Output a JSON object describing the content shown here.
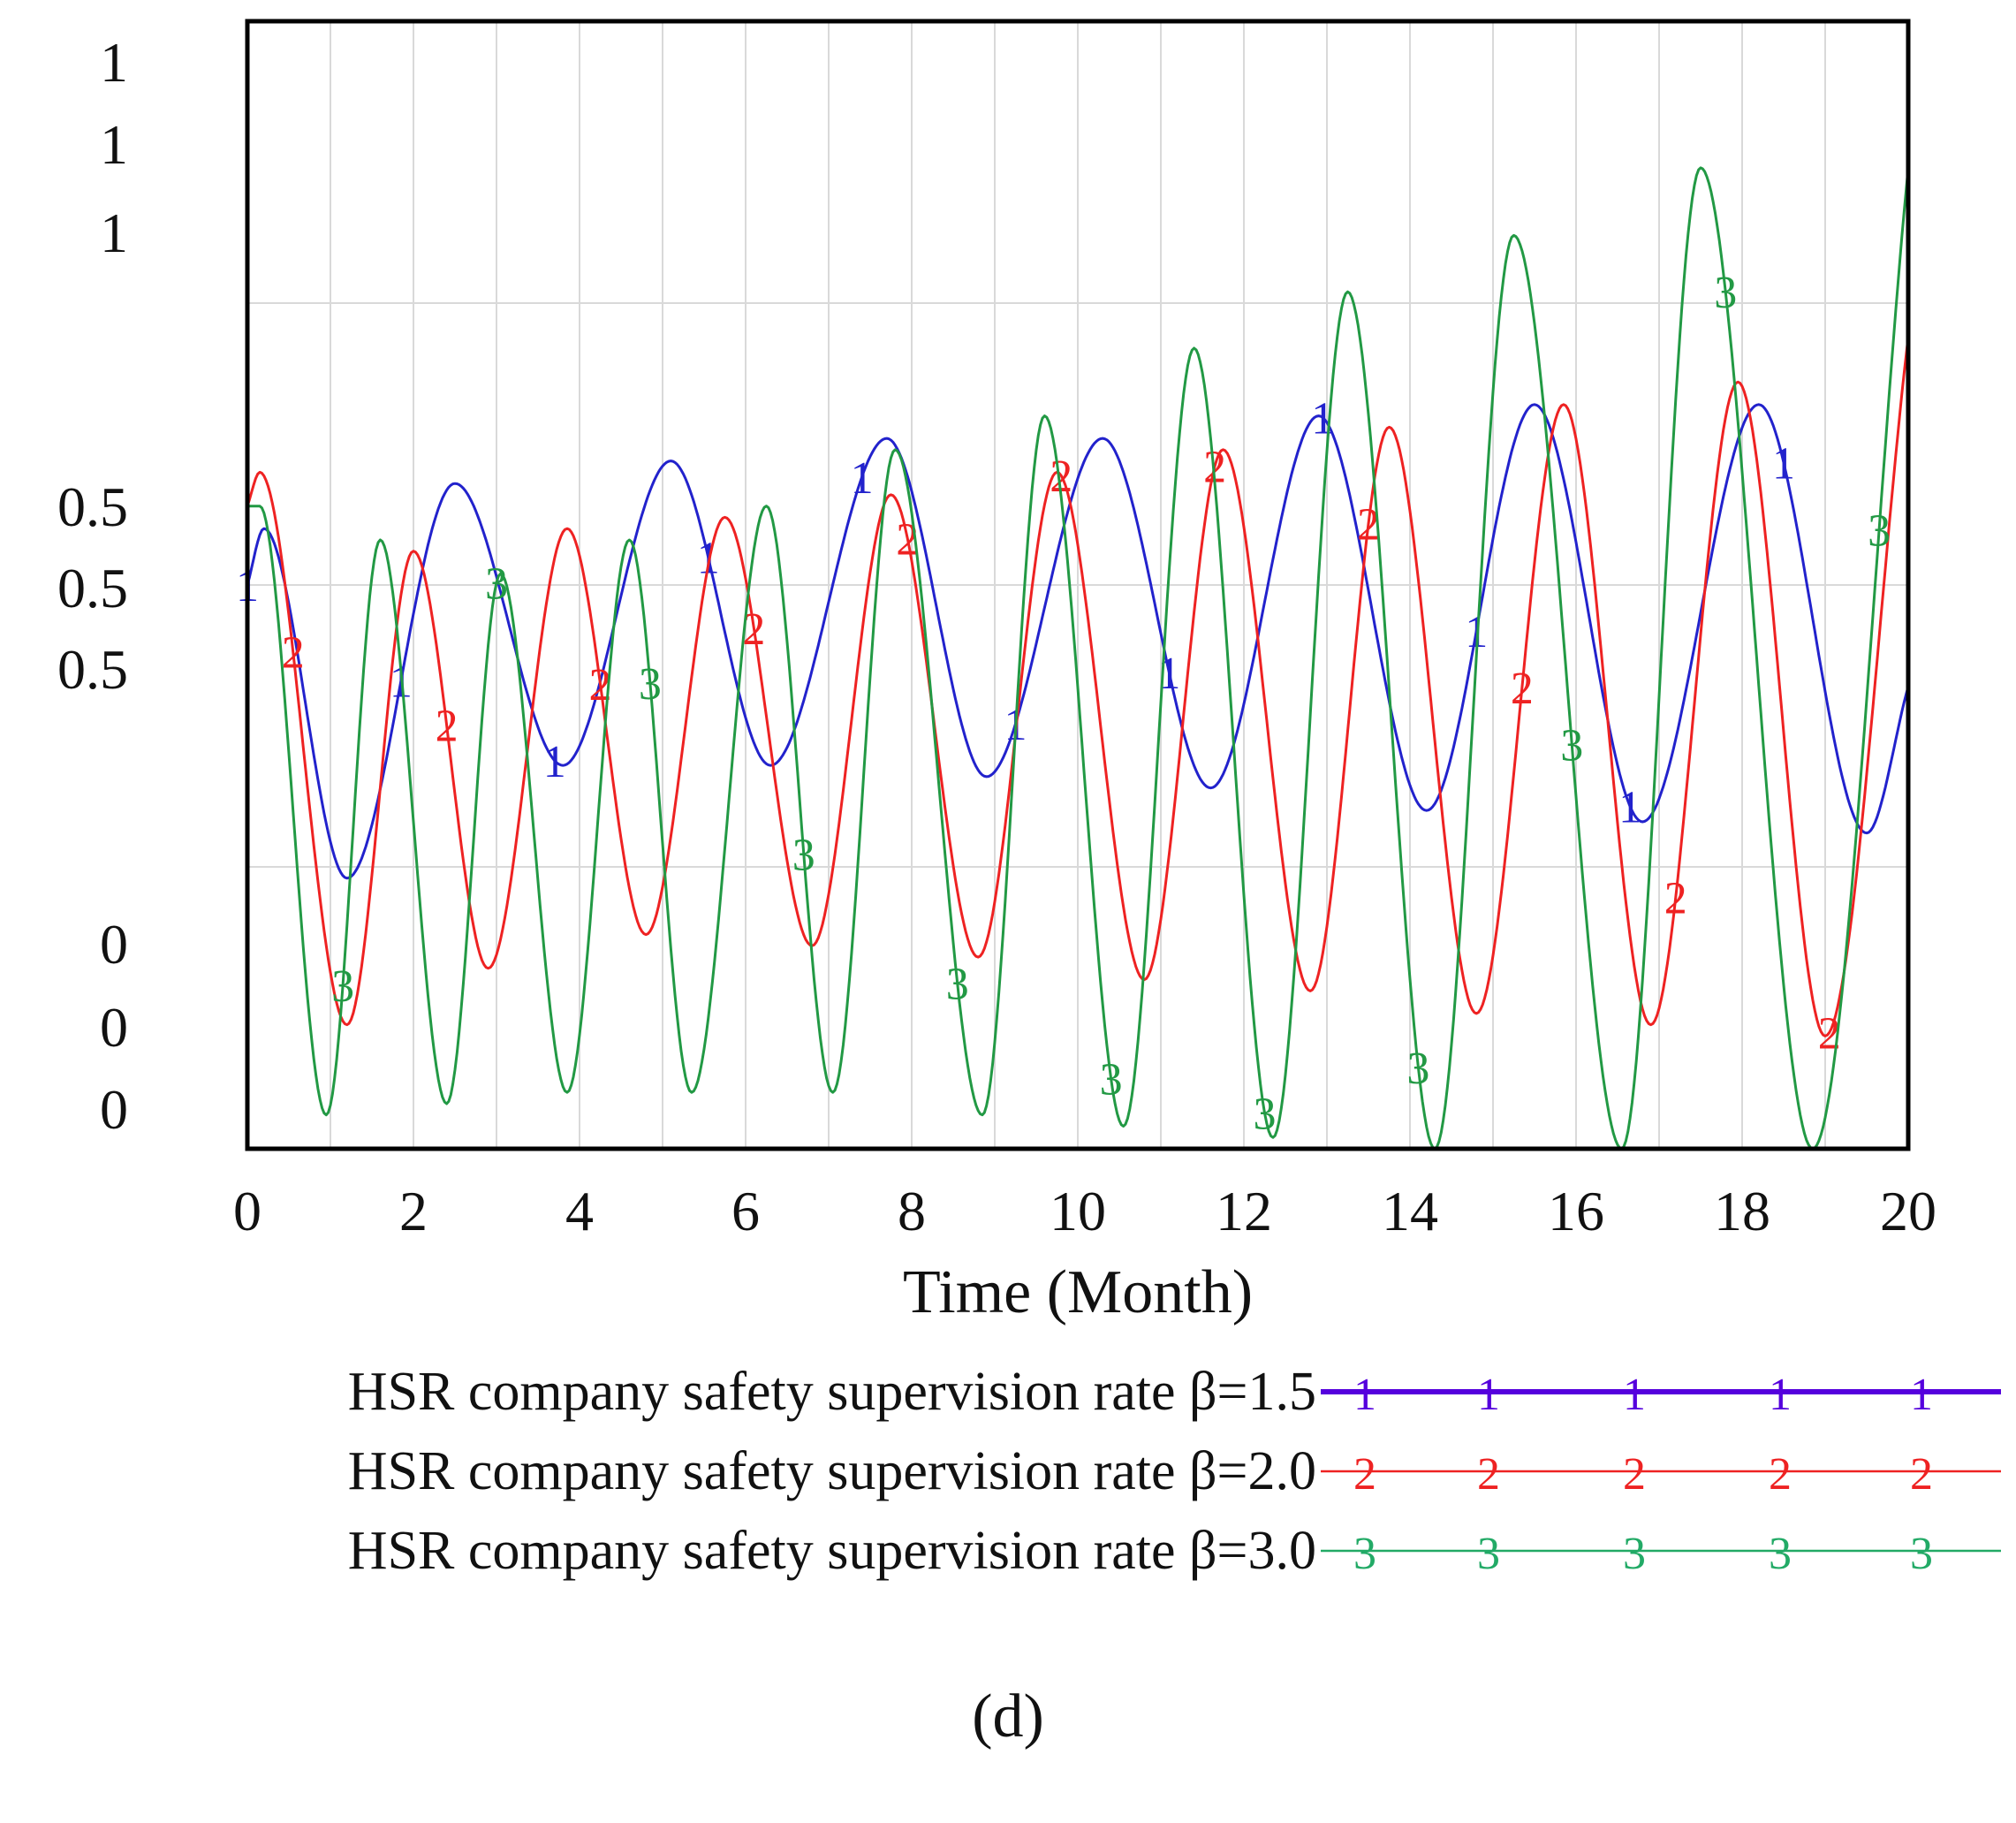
{
  "chart_data": {
    "type": "line",
    "title": "",
    "xlabel": "Time (Month)",
    "ylabel": "",
    "xlim": [
      0,
      20
    ],
    "ylim": [
      0,
      1
    ],
    "x_ticks": [
      0,
      2,
      4,
      6,
      8,
      10,
      12,
      14,
      16,
      18,
      20
    ],
    "y_tick_labels": [
      "1",
      "1",
      "1",
      "0.5",
      "0.5",
      "0.5",
      "0",
      "0",
      "0"
    ],
    "grid": true,
    "legend_position": "bottom",
    "caption": "(d)",
    "series": [
      {
        "name": "HSR company safety supervision rate β=1.5",
        "marker": "1",
        "color": "#2222cc",
        "legend_color": "#5500dd",
        "x": [
          0,
          0.2,
          1.2,
          2.5,
          3.8,
          5.1,
          6.3,
          7.7,
          8.9,
          10.3,
          11.6,
          12.9,
          14.2,
          15.5,
          16.8,
          18.2,
          19.5,
          20
        ],
        "y": [
          0.5,
          0.55,
          0.24,
          0.59,
          0.34,
          0.61,
          0.34,
          0.63,
          0.33,
          0.63,
          0.32,
          0.65,
          0.3,
          0.66,
          0.29,
          0.66,
          0.28,
          0.41
        ]
      },
      {
        "name": "HSR company safety supervision rate β=2.0",
        "marker": "2",
        "color": "#ee2222",
        "legend_color": "#ee2222",
        "x": [
          0,
          0.15,
          1.2,
          2.0,
          2.9,
          3.85,
          4.8,
          5.75,
          6.8,
          7.75,
          8.8,
          9.75,
          10.8,
          11.75,
          12.8,
          13.75,
          14.8,
          15.85,
          16.9,
          17.95,
          19.0,
          20
        ],
        "y": [
          0.57,
          0.6,
          0.11,
          0.53,
          0.16,
          0.55,
          0.19,
          0.56,
          0.18,
          0.58,
          0.17,
          0.6,
          0.15,
          0.62,
          0.14,
          0.64,
          0.12,
          0.66,
          0.11,
          0.68,
          0.1,
          0.72
        ]
      },
      {
        "name": "HSR company safety supervision rate β=3.0",
        "marker": "3",
        "color": "#229944",
        "legend_color": "#22aa66",
        "x": [
          0,
          0.15,
          0.95,
          1.6,
          2.4,
          3.05,
          3.85,
          4.6,
          5.35,
          6.25,
          7.05,
          7.8,
          8.85,
          9.6,
          10.55,
          11.4,
          12.35,
          13.25,
          14.3,
          15.25,
          16.55,
          17.5,
          18.85,
          20
        ],
        "y": [
          0.57,
          0.57,
          0.03,
          0.54,
          0.04,
          0.51,
          0.05,
          0.54,
          0.05,
          0.57,
          0.05,
          0.62,
          0.03,
          0.65,
          0.02,
          0.71,
          0.01,
          0.76,
          0.0,
          0.81,
          0.0,
          0.87,
          0.0,
          0.87
        ]
      }
    ]
  }
}
